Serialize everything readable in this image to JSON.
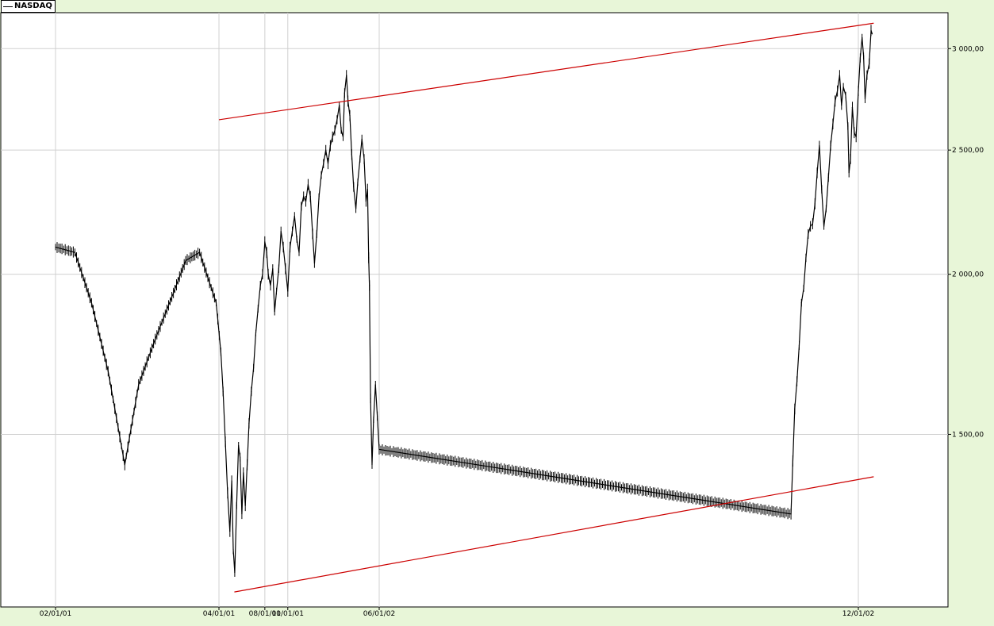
{
  "chart_data": {
    "type": "line",
    "title": "",
    "legend": [
      {
        "name": "NASDAQ",
        "color": "#000000"
      }
    ],
    "legend_position": "top-left",
    "grid": true,
    "y_scale": "log",
    "ylim": [
      1100,
      3200
    ],
    "yticks": [
      1500,
      2000,
      2500,
      3000
    ],
    "ytick_labels": [
      "1 500,00",
      "2 000,00",
      "2 500,00",
      "3 000,00"
    ],
    "x_range_days": 0,
    "xticks": [
      "02/01/01",
      "04/01/01",
      "06/01/02",
      "08/01/01",
      "10/01/01",
      "12/01/02"
    ],
    "colors": {
      "series": "#000000",
      "trendline": "#cc0000",
      "plot_bg": "#ffffff",
      "page_bg": "#e8f6d8",
      "grid": "#d0d0d0"
    },
    "series": [
      {
        "name": "NASDAQ",
        "points": [
          [
            "02/01/01",
            2100
          ],
          [
            "02/08/01",
            2080
          ],
          [
            "02/14/01",
            1900
          ],
          [
            "02/20/01",
            1680
          ],
          [
            "02/26/01",
            1420
          ],
          [
            "03/03/01",
            1640
          ],
          [
            "03/09/01",
            1780
          ],
          [
            "03/15/01",
            1920
          ],
          [
            "03/20/01",
            2050
          ],
          [
            "03/25/01",
            2080
          ],
          [
            "03/31/01",
            1900
          ],
          [
            "04/06/01",
            1740
          ],
          [
            "04/12/01",
            1620
          ],
          [
            "04/18/01",
            1480
          ],
          [
            "04/24/01",
            1350
          ],
          [
            "04/30/01",
            1260
          ],
          [
            "05/05/01",
            1380
          ],
          [
            "05/09/01",
            1220
          ],
          [
            "05/13/01",
            1170
          ],
          [
            "05/18/01",
            1320
          ],
          [
            "05/23/01",
            1470
          ],
          [
            "05/27/01",
            1440
          ],
          [
            "06/01/01",
            1300
          ],
          [
            "06/05/01",
            1400
          ],
          [
            "06/10/01",
            1320
          ],
          [
            "06/15/01",
            1420
          ],
          [
            "06/20/01",
            1530
          ],
          [
            "06/26/01",
            1620
          ],
          [
            "07/02/01",
            1690
          ],
          [
            "07/08/01",
            1800
          ],
          [
            "07/14/01",
            1880
          ],
          [
            "07/20/01",
            1960
          ],
          [
            "07/26/01",
            2000
          ],
          [
            "08/01/01",
            2120
          ],
          [
            "08/06/01",
            2080
          ],
          [
            "08/10/01",
            2000
          ],
          [
            "08/16/01",
            1960
          ],
          [
            "08/22/01",
            2020
          ],
          [
            "08/27/01",
            1870
          ],
          [
            "09/01/01",
            1940
          ],
          [
            "09/07/01",
            2020
          ],
          [
            "09/13/01",
            2160
          ],
          [
            "09/19/01",
            2100
          ],
          [
            "09/25/01",
            2020
          ],
          [
            "10/01/01",
            1940
          ],
          [
            "10/07/01",
            2100
          ],
          [
            "10/13/01",
            2160
          ],
          [
            "10/19/01",
            2220
          ],
          [
            "10/25/01",
            2130
          ],
          [
            "10/31/01",
            2080
          ],
          [
            "11/06/01",
            2260
          ],
          [
            "11/12/01",
            2300
          ],
          [
            "11/18/01",
            2280
          ],
          [
            "11/24/01",
            2350
          ],
          [
            "11/30/01",
            2300
          ],
          [
            "12/06/01",
            2150
          ],
          [
            "12/11/01",
            2040
          ],
          [
            "12/17/01",
            2150
          ],
          [
            "12/23/01",
            2300
          ],
          [
            "12/29/01",
            2390
          ],
          [
            "01/04/02",
            2440
          ],
          [
            "01/10/02",
            2500
          ],
          [
            "01/16/02",
            2440
          ],
          [
            "01/22/02",
            2520
          ],
          [
            "01/28/02",
            2560
          ],
          [
            "02/03/02",
            2590
          ],
          [
            "02/09/02",
            2640
          ],
          [
            "02/15/02",
            2710
          ],
          [
            "02/20/02",
            2590
          ],
          [
            "02/25/02",
            2560
          ],
          [
            "03/01/02",
            2770
          ],
          [
            "03/06/02",
            2860
          ],
          [
            "03/10/02",
            2730
          ],
          [
            "03/15/02",
            2660
          ],
          [
            "03/20/02",
            2480
          ],
          [
            "03/25/02",
            2340
          ],
          [
            "03/31/02",
            2250
          ],
          [
            "04/05/02",
            2360
          ],
          [
            "04/11/02",
            2460
          ],
          [
            "04/16/02",
            2550
          ],
          [
            "04/22/02",
            2460
          ],
          [
            "04/27/02",
            2280
          ],
          [
            "05/01/02",
            2330
          ],
          [
            "05/04/02",
            2060
          ],
          [
            "05/06/02",
            1960
          ],
          [
            "05/09/02",
            1600
          ],
          [
            "05/13/02",
            1420
          ],
          [
            "05/17/02",
            1540
          ],
          [
            "05/22/02",
            1640
          ],
          [
            "05/27/02",
            1550
          ],
          [
            "06/01/02",
            1460
          ],
          [
            "06/04/02",
            1300
          ],
          [
            "06/09/02",
            1430
          ],
          [
            "06/14/02",
            1570
          ],
          [
            "06/20/02",
            1650
          ],
          [
            "06/26/02",
            1760
          ],
          [
            "07/02/02",
            1900
          ],
          [
            "07/08/02",
            1950
          ],
          [
            "07/14/02",
            2060
          ],
          [
            "07/20/02",
            2150
          ],
          [
            "07/26/02",
            2180
          ],
          [
            "08/01/02",
            2190
          ],
          [
            "08/07/02",
            2270
          ],
          [
            "08/13/02",
            2400
          ],
          [
            "08/19/02",
            2520
          ],
          [
            "08/25/02",
            2330
          ],
          [
            "08/31/02",
            2180
          ],
          [
            "09/06/02",
            2250
          ],
          [
            "09/12/02",
            2380
          ],
          [
            "09/18/02",
            2520
          ],
          [
            "09/24/02",
            2620
          ],
          [
            "09/30/02",
            2730
          ],
          [
            "10/06/02",
            2780
          ],
          [
            "10/12/02",
            2860
          ],
          [
            "10/17/02",
            2710
          ],
          [
            "10/22/02",
            2800
          ],
          [
            "10/28/02",
            2760
          ],
          [
            "11/03/02",
            2610
          ],
          [
            "11/06/02",
            2400
          ],
          [
            "11/10/02",
            2460
          ],
          [
            "11/15/02",
            2700
          ],
          [
            "11/20/02",
            2580
          ],
          [
            "11/25/02",
            2560
          ],
          [
            "12/01/02",
            2780
          ],
          [
            "12/06/02",
            2950
          ],
          [
            "12/11/02",
            3060
          ],
          [
            "12/15/02",
            2960
          ],
          [
            "12/19/02",
            2740
          ],
          [
            "12/24/02",
            2860
          ],
          [
            "12/30/02",
            2920
          ],
          [
            "01/04/03",
            3100
          ],
          [
            "01/07/03",
            3080
          ]
        ]
      }
    ],
    "trendlines": [
      {
        "name": "upper-trendline",
        "from": [
          "04/01/01",
          2640
        ],
        "to": [
          "01/11/03",
          3140
        ]
      },
      {
        "name": "lower-trendline",
        "from": [
          "05/12/01",
          1130
        ],
        "to": [
          "01/11/03",
          1390
        ]
      }
    ]
  }
}
